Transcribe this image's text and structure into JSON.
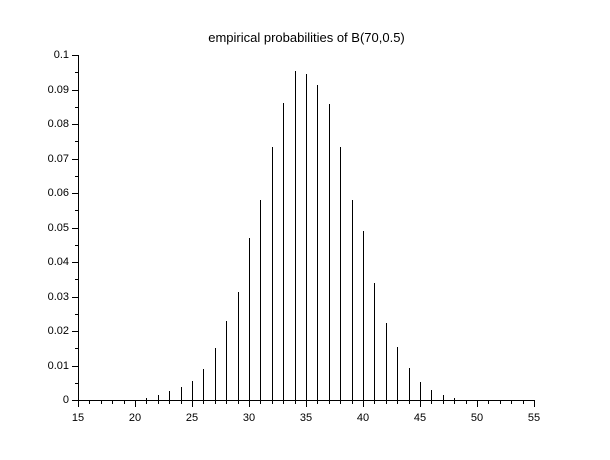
{
  "window": {
    "background": "#ffffff"
  },
  "chart_data": {
    "type": "stem",
    "title": "empirical probabilities of B(70,0.5)",
    "xlabel": "",
    "ylabel": "",
    "xlim": [
      15,
      55
    ],
    "ylim": [
      0,
      0.1
    ],
    "grid": false,
    "legend_position": "none",
    "line_color": "#000000",
    "background_color": "#ffffff",
    "x_minor_tick_step": 1,
    "x_major_tick_step": 5,
    "y_minor_tick_step": 0.005,
    "y_major_tick_step": 0.01,
    "x_tick_labels": [
      "15",
      "20",
      "25",
      "30",
      "35",
      "40",
      "45",
      "50",
      "55"
    ],
    "y_tick_labels": [
      "0",
      "0.01",
      "0.02",
      "0.03",
      "0.04",
      "0.05",
      "0.06",
      "0.07",
      "0.08",
      "0.09",
      "0.1"
    ],
    "x": [
      21,
      22,
      23,
      24,
      25,
      26,
      27,
      28,
      29,
      30,
      31,
      32,
      33,
      34,
      35,
      36,
      37,
      38,
      39,
      40,
      41,
      42,
      43,
      44,
      45,
      46,
      47,
      48
    ],
    "values": [
      0.0007,
      0.0015,
      0.0026,
      0.0037,
      0.0056,
      0.009,
      0.0152,
      0.0228,
      0.0314,
      0.047,
      0.0581,
      0.0732,
      0.0862,
      0.0955,
      0.0944,
      0.0913,
      0.0858,
      0.0734,
      0.0579,
      0.0489,
      0.0339,
      0.0223,
      0.0155,
      0.0092,
      0.0053,
      0.003,
      0.0015,
      0.0005
    ]
  }
}
